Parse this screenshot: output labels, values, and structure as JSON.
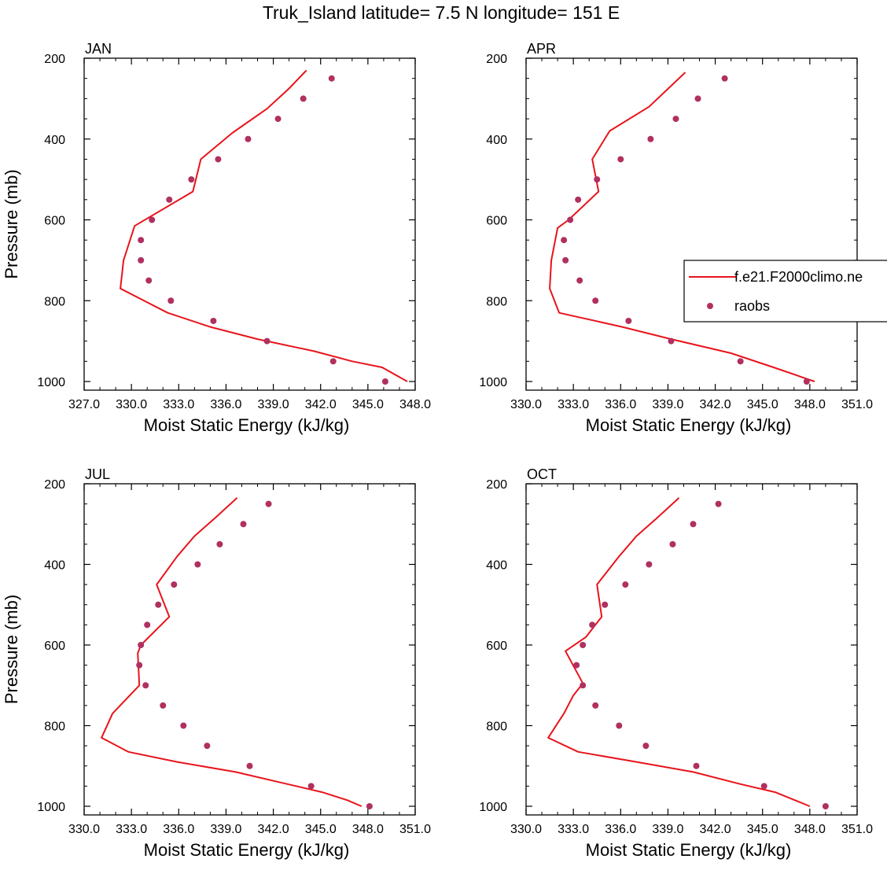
{
  "title": "Truk_Island  latitude= 7.5 N longitude= 151 E",
  "colors": {
    "model_line": "#e8141b",
    "obs_marker": "#b03060",
    "axis": "#000000",
    "background": "#ffffff"
  },
  "legend": {
    "placement": "right of APR panel",
    "entries": [
      {
        "label": "f.e21.F2000climo.ne",
        "type": "line"
      },
      {
        "label": "raobs",
        "type": "marker"
      }
    ]
  },
  "chart_data": [
    {
      "type": "line",
      "panel": "JAN",
      "title": "JAN",
      "xlabel": "Moist Static Energy (kJ/kg)",
      "ylabel": "Pressure (mb)",
      "xlim": [
        327,
        348
      ],
      "xticks": [
        "327.0",
        "330.0",
        "333.0",
        "336.0",
        "339.0",
        "342.0",
        "345.0",
        "348.0"
      ],
      "ylim": [
        200,
        1000
      ],
      "yticks": [
        "200",
        "400",
        "600",
        "800",
        "1000"
      ],
      "y_reversed": true,
      "grid": false,
      "series": [
        {
          "name": "f.e21.F2000climo.ne",
          "kind": "line",
          "x": [
            341.1,
            340.0,
            338.6,
            336.4,
            334.4,
            333.9,
            330.2,
            329.5,
            329.3,
            332.3,
            335.0,
            338.0,
            341.6,
            344.0,
            345.9,
            347.5
          ],
          "y": [
            230,
            275,
            325,
            385,
            450,
            530,
            615,
            700,
            770,
            830,
            865,
            895,
            925,
            950,
            965,
            1000
          ]
        },
        {
          "name": "raobs",
          "kind": "markers",
          "x": [
            342.7,
            340.9,
            339.3,
            337.4,
            335.5,
            333.8,
            332.4,
            331.3,
            330.6,
            330.6,
            331.1,
            332.5,
            335.2,
            338.6,
            342.8,
            346.1
          ],
          "y": [
            250,
            300,
            350,
            400,
            450,
            500,
            550,
            600,
            650,
            700,
            750,
            800,
            850,
            900,
            950,
            1000
          ]
        }
      ]
    },
    {
      "type": "line",
      "panel": "APR",
      "title": "APR",
      "xlabel": "Moist Static Energy (kJ/kg)",
      "ylabel": "",
      "xlim": [
        330,
        351
      ],
      "xticks": [
        "330.0",
        "333.0",
        "336.0",
        "339.0",
        "342.0",
        "345.0",
        "348.0",
        "351.0"
      ],
      "ylim": [
        200,
        1000
      ],
      "yticks": [
        "200",
        "400",
        "600",
        "800",
        "1000"
      ],
      "y_reversed": true,
      "grid": false,
      "series": [
        {
          "name": "f.e21.F2000climo.ne",
          "kind": "line",
          "x": [
            340.1,
            337.8,
            335.3,
            334.2,
            334.6,
            332.7,
            332.0,
            331.6,
            331.5,
            332.1,
            336.1,
            339.2,
            343.0,
            345.7,
            348.3
          ],
          "y": [
            235,
            320,
            380,
            450,
            530,
            600,
            620,
            700,
            770,
            830,
            865,
            895,
            930,
            965,
            1000
          ]
        },
        {
          "name": "raobs",
          "kind": "markers",
          "x": [
            342.6,
            340.9,
            339.5,
            337.9,
            336.0,
            334.5,
            333.3,
            332.8,
            332.4,
            332.5,
            333.4,
            334.4,
            336.5,
            339.2,
            343.6,
            347.8
          ],
          "y": [
            250,
            300,
            350,
            400,
            450,
            500,
            550,
            600,
            650,
            700,
            750,
            800,
            850,
            900,
            950,
            1000
          ]
        }
      ]
    },
    {
      "type": "line",
      "panel": "JUL",
      "title": "JUL",
      "xlabel": "Moist Static Energy (kJ/kg)",
      "ylabel": "Pressure (mb)",
      "xlim": [
        330,
        351
      ],
      "xticks": [
        "330.0",
        "333.0",
        "336.0",
        "339.0",
        "342.0",
        "345.0",
        "348.0",
        "351.0"
      ],
      "ylim": [
        200,
        1000
      ],
      "yticks": [
        "200",
        "400",
        "600",
        "800",
        "1000"
      ],
      "y_reversed": true,
      "grid": false,
      "series": [
        {
          "name": "f.e21.F2000climo.ne",
          "kind": "line",
          "x": [
            339.7,
            338.3,
            337.0,
            335.9,
            334.6,
            335.4,
            333.6,
            333.4,
            333.5,
            331.8,
            331.1,
            332.8,
            335.9,
            339.6,
            342.9,
            345.1,
            346.7,
            347.6
          ],
          "y": [
            235,
            285,
            330,
            380,
            450,
            530,
            600,
            620,
            700,
            770,
            830,
            865,
            890,
            915,
            945,
            965,
            985,
            1000
          ]
        },
        {
          "name": "raobs",
          "kind": "markers",
          "x": [
            341.7,
            340.1,
            338.6,
            337.2,
            335.7,
            334.7,
            334.0,
            333.6,
            333.5,
            333.9,
            335.0,
            336.3,
            337.8,
            340.5,
            344.4,
            348.1
          ],
          "y": [
            250,
            300,
            350,
            400,
            450,
            500,
            550,
            600,
            650,
            700,
            750,
            800,
            850,
            900,
            950,
            1000
          ]
        }
      ]
    },
    {
      "type": "line",
      "panel": "OCT",
      "title": "OCT",
      "xlabel": "Moist Static Energy (kJ/kg)",
      "ylabel": "",
      "xlim": [
        330,
        351
      ],
      "xticks": [
        "330.0",
        "333.0",
        "336.0",
        "339.0",
        "342.0",
        "345.0",
        "348.0",
        "351.0"
      ],
      "ylim": [
        200,
        1000
      ],
      "yticks": [
        "200",
        "400",
        "600",
        "800",
        "1000"
      ],
      "y_reversed": true,
      "grid": false,
      "series": [
        {
          "name": "f.e21.F2000climo.ne",
          "kind": "line",
          "x": [
            339.7,
            338.3,
            337.0,
            335.9,
            334.5,
            334.8,
            333.8,
            332.5,
            333.6,
            333.0,
            332.4,
            331.4,
            333.3,
            337.0,
            340.6,
            343.6,
            345.8,
            348.0
          ],
          "y": [
            235,
            285,
            330,
            380,
            450,
            530,
            580,
            615,
            695,
            725,
            770,
            830,
            865,
            890,
            915,
            945,
            965,
            1000
          ]
        },
        {
          "name": "raobs",
          "kind": "markers",
          "x": [
            342.2,
            340.6,
            339.3,
            337.8,
            336.3,
            335.0,
            334.2,
            333.6,
            333.2,
            333.6,
            334.4,
            335.9,
            337.6,
            340.8,
            345.1,
            349.0
          ],
          "y": [
            250,
            300,
            350,
            400,
            450,
            500,
            550,
            600,
            650,
            700,
            750,
            800,
            850,
            900,
            950,
            1000
          ]
        }
      ]
    }
  ]
}
